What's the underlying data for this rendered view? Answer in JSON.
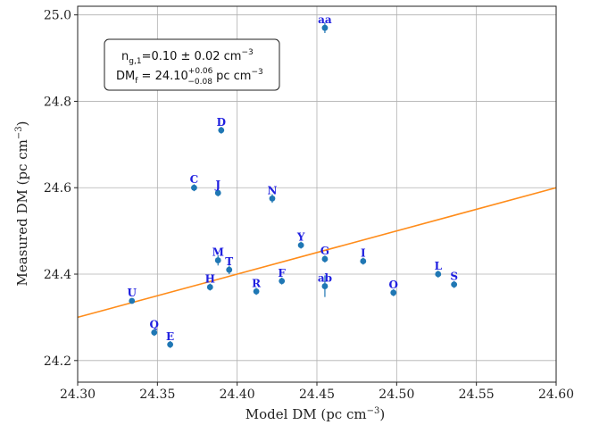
{
  "chart_data": {
    "type": "scatter",
    "xlabel": "Model DM (pc cm",
    "xlabel_exp": "−3",
    "xlabel_close": ")",
    "ylabel": "Measured DM (pc cm",
    "ylabel_exp": "−3",
    "ylabel_close": ")",
    "xlim": [
      24.3,
      24.6
    ],
    "ylim": [
      24.15,
      25.02
    ],
    "x_ticks": [
      24.3,
      24.35,
      24.4,
      24.45,
      24.5,
      24.55,
      24.6
    ],
    "x_tick_labels": [
      "24.30",
      "24.35",
      "24.40",
      "24.45",
      "24.50",
      "24.55",
      "24.60"
    ],
    "y_ticks": [
      24.2,
      24.4,
      24.6,
      24.8,
      25.0
    ],
    "y_tick_labels": [
      "24.2",
      "24.4",
      "24.6",
      "24.8",
      "25.0"
    ],
    "grid": true,
    "point_color": "#1f77b4",
    "label_color": "#1f1fe0",
    "line_color": "#ff8c1a",
    "fit_line": {
      "x": [
        24.3,
        24.6
      ],
      "y": [
        24.3,
        24.6
      ]
    },
    "points": [
      {
        "label": "aa",
        "x": 24.455,
        "y": 24.97,
        "yerr": 0.012
      },
      {
        "label": "D",
        "x": 24.39,
        "y": 24.733,
        "yerr": 0.008
      },
      {
        "label": "C",
        "x": 24.373,
        "y": 24.6,
        "yerr": 0.008
      },
      {
        "label": "J",
        "x": 24.388,
        "y": 24.588,
        "yerr": 0.008
      },
      {
        "label": "N",
        "x": 24.422,
        "y": 24.575,
        "yerr": 0.01
      },
      {
        "label": "Y",
        "x": 24.44,
        "y": 24.467,
        "yerr": 0.008
      },
      {
        "label": "G",
        "x": 24.455,
        "y": 24.435,
        "yerr": 0.008
      },
      {
        "label": "I",
        "x": 24.479,
        "y": 24.43,
        "yerr": 0.008
      },
      {
        "label": "M",
        "x": 24.388,
        "y": 24.432,
        "yerr": 0.012
      },
      {
        "label": "T",
        "x": 24.395,
        "y": 24.41,
        "yerr": 0.01
      },
      {
        "label": "F",
        "x": 24.428,
        "y": 24.384,
        "yerr": 0.008
      },
      {
        "label": "H",
        "x": 24.383,
        "y": 24.37,
        "yerr": 0.008
      },
      {
        "label": "R",
        "x": 24.412,
        "y": 24.36,
        "yerr": 0.008
      },
      {
        "label": "ab",
        "x": 24.455,
        "y": 24.372,
        "yerr": 0.025
      },
      {
        "label": "O",
        "x": 24.498,
        "y": 24.357,
        "yerr": 0.008
      },
      {
        "label": "L",
        "x": 24.526,
        "y": 24.4,
        "yerr": 0.008
      },
      {
        "label": "S",
        "x": 24.536,
        "y": 24.376,
        "yerr": 0.008
      },
      {
        "label": "U",
        "x": 24.334,
        "y": 24.338,
        "yerr": 0.006
      },
      {
        "label": "Q",
        "x": 24.348,
        "y": 24.265,
        "yerr": 0.008
      },
      {
        "label": "E",
        "x": 24.358,
        "y": 24.237,
        "yerr": 0.008
      }
    ],
    "annotation": {
      "line1_base": "n",
      "line1_sub": "g,1",
      "line1_rest": "=0.10 ± 0.02 cm",
      "line1_exp": "−3",
      "line2_base": "DM",
      "line2_sub": "f",
      "line2_mid": " = 24.10",
      "line2_sup": "+0.06",
      "line2_inf": "−0.08",
      "line2_rest": " pc cm",
      "line2_exp": "−3"
    }
  }
}
